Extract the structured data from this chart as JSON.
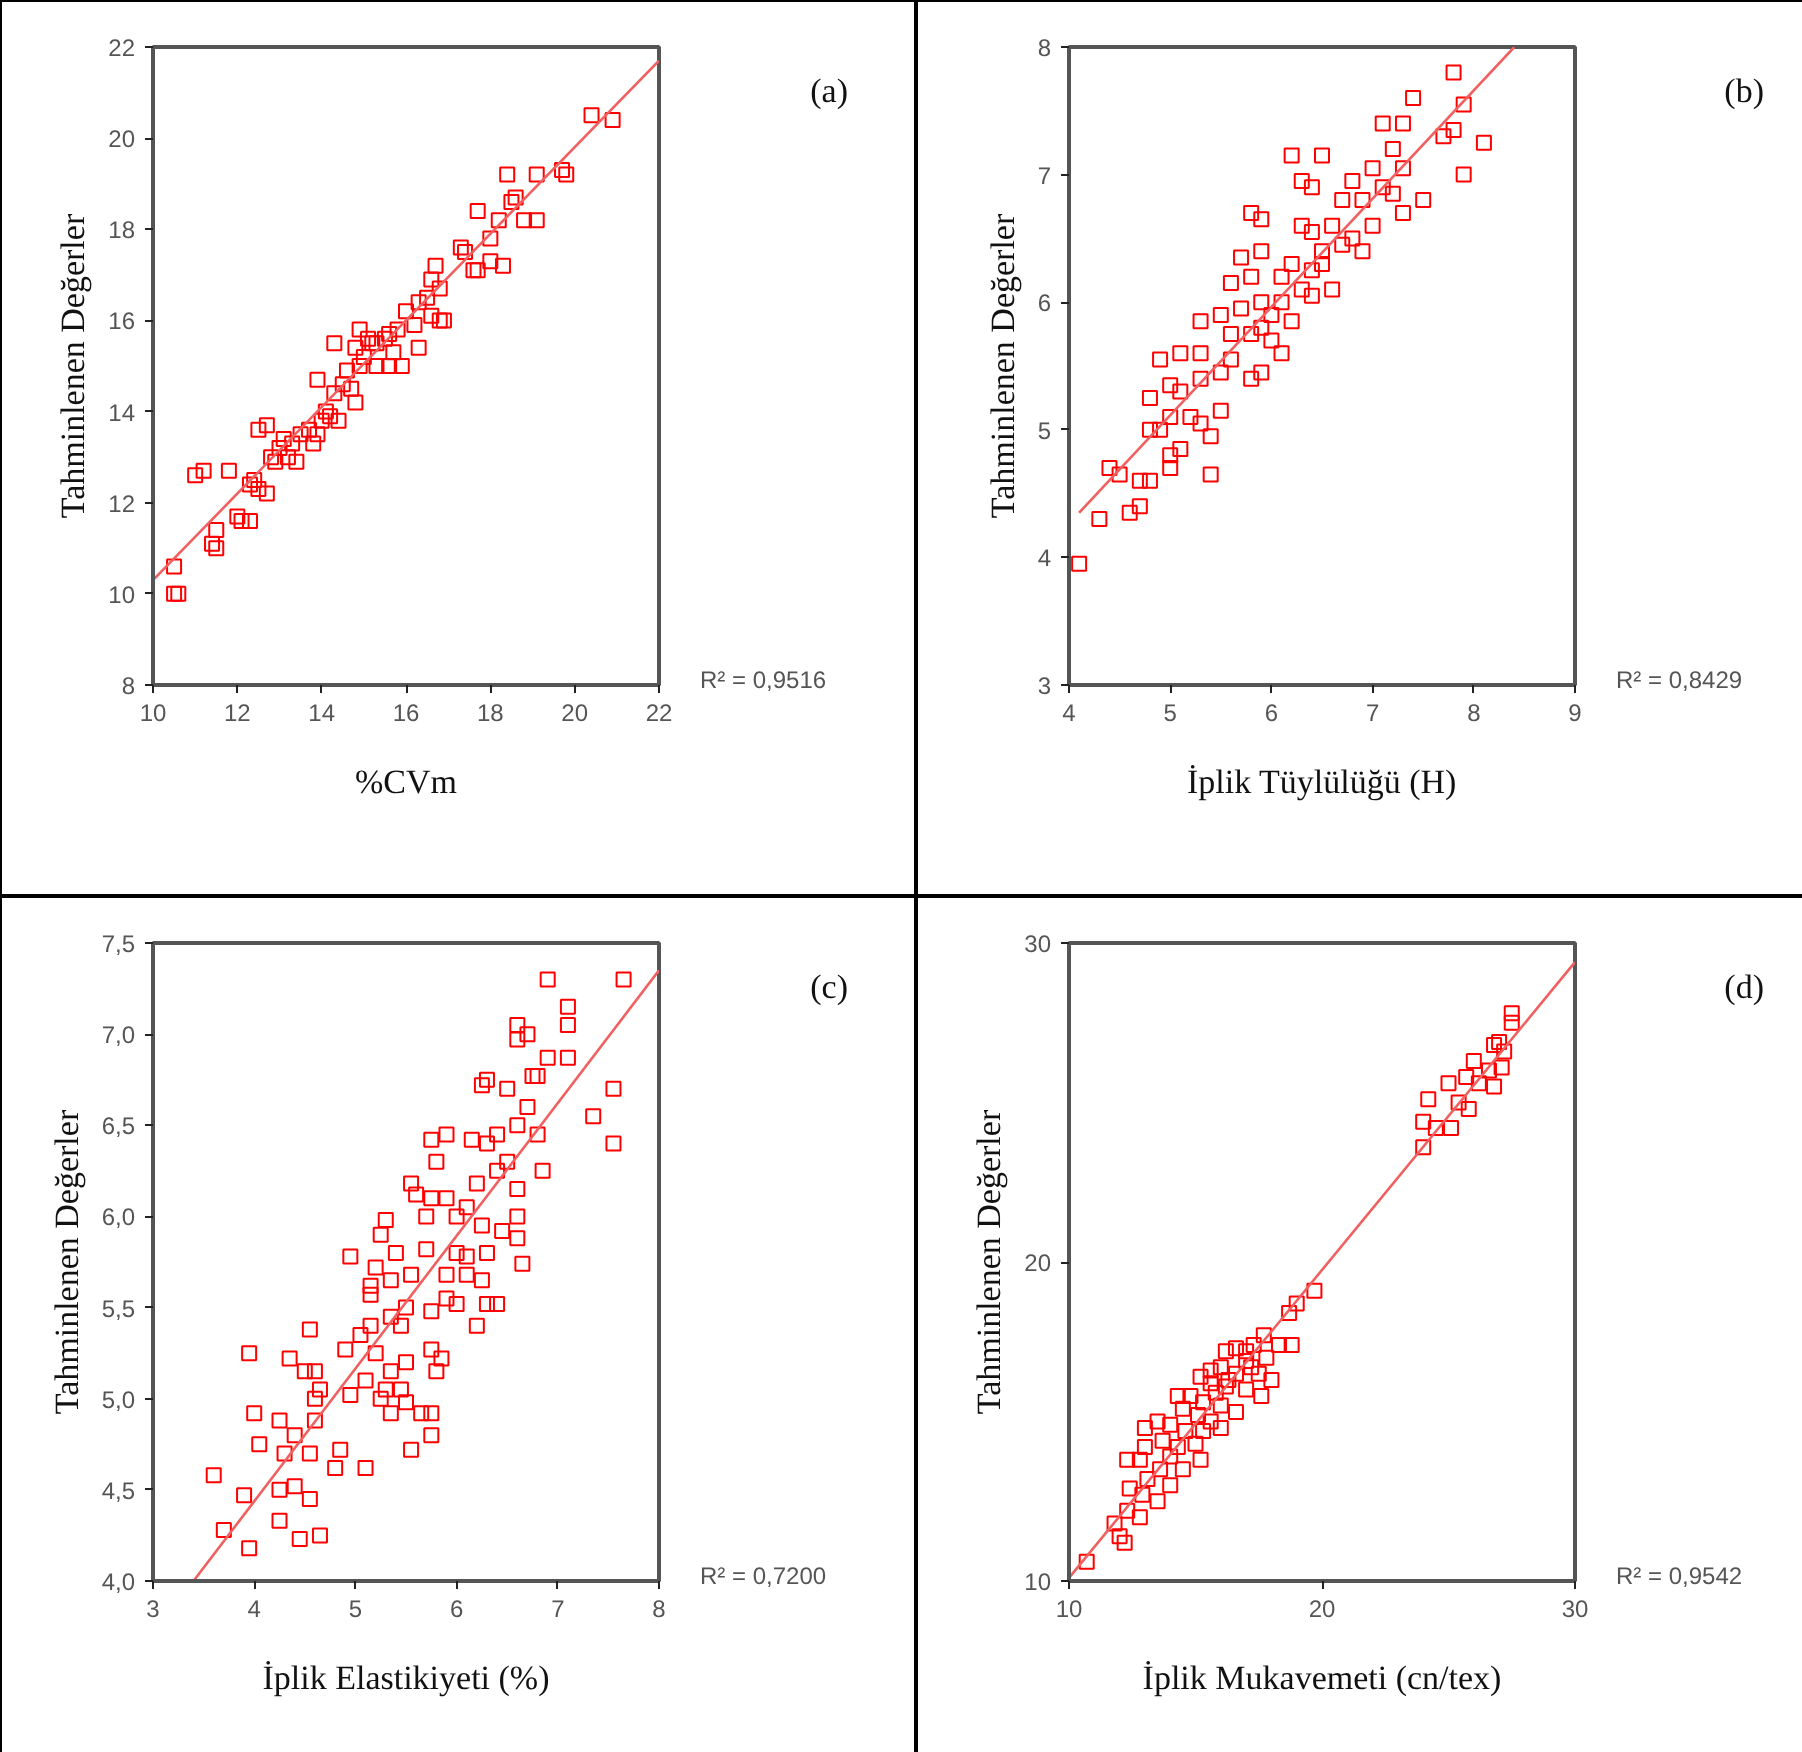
{
  "chart_data": [
    {
      "type": "scatter",
      "xlabel": "%CVm",
      "ylabel": "Tahminlenen Değerler",
      "annotations": [
        "(a)",
        "R² = 0,9516"
      ],
      "xlim": [
        10,
        22
      ],
      "ylim": [
        8,
        22
      ],
      "xticks": [
        10,
        12,
        14,
        16,
        18,
        20,
        22
      ],
      "yticks": [
        8,
        10,
        12,
        14,
        16,
        18,
        20,
        22
      ],
      "grid": false,
      "series": [
        {
          "color": "#ff0000",
          "marker": "square",
          "x": [
            20.4,
            20.9,
            19.7,
            19.8,
            19.1,
            18.4,
            18.6,
            18.5,
            18.8,
            19.1,
            18.2,
            17.7,
            18.0,
            17.3,
            17.4,
            17.6,
            17.7,
            18.0,
            18.3,
            16.7,
            16.6,
            16.8,
            16.8,
            16.9,
            16.6,
            16.3,
            16.0,
            16.2,
            16.3,
            15.8,
            15.6,
            15.7,
            15.5,
            15.3,
            15.1,
            15.0,
            15.6,
            15.9,
            15.3,
            14.9,
            14.8,
            14.9,
            14.6,
            14.3,
            14.7,
            14.5,
            14.3,
            13.9,
            14.8,
            14.2,
            14.4,
            14.0,
            13.7,
            13.9,
            13.5,
            13.3,
            13.1,
            13.0,
            13.2,
            13.4,
            12.9,
            12.7,
            12.5,
            12.8,
            12.3,
            12.5,
            12.7,
            12.4,
            12.0,
            12.1,
            12.3,
            11.8,
            11.2,
            11.0,
            11.5,
            11.4,
            11.5,
            10.5,
            10.5,
            10.6,
            15.2,
            16.5,
            13.8,
            14.1
          ],
          "values": [
            20.5,
            20.4,
            19.3,
            19.2,
            19.2,
            19.2,
            18.7,
            18.6,
            18.2,
            18.2,
            18.2,
            18.4,
            17.8,
            17.6,
            17.5,
            17.1,
            17.1,
            17.3,
            17.2,
            17.2,
            16.9,
            16.7,
            16.0,
            16.0,
            16.1,
            16.4,
            16.2,
            15.9,
            15.4,
            15.8,
            15.7,
            15.3,
            15.6,
            15.5,
            15.6,
            15.2,
            15.0,
            15.0,
            15.0,
            15.8,
            15.4,
            15.0,
            14.9,
            15.5,
            14.5,
            14.6,
            14.4,
            14.7,
            14.2,
            13.9,
            13.8,
            13.8,
            13.6,
            13.5,
            13.5,
            13.3,
            13.4,
            13.2,
            13.0,
            12.9,
            12.9,
            13.7,
            13.6,
            13.0,
            12.4,
            12.3,
            12.2,
            12.5,
            11.7,
            11.6,
            11.6,
            12.7,
            12.7,
            12.6,
            11.4,
            11.1,
            11.0,
            10.6,
            10.0,
            10.0,
            15.5,
            16.5,
            13.3,
            14.0
          ]
        },
        {
          "type": "line",
          "color": "#f06060",
          "x": [
            10,
            22
          ],
          "values": [
            10.3,
            21.7
          ]
        }
      ]
    },
    {
      "type": "scatter",
      "xlabel": "İplik Tüylülüğü (H)",
      "ylabel": "Tahminlenen Değerler",
      "annotations": [
        "(b)",
        "R² = 0,8429"
      ],
      "xlim": [
        4,
        9
      ],
      "ylim": [
        3,
        8
      ],
      "xticks": [
        4,
        5,
        6,
        7,
        8,
        9
      ],
      "yticks": [
        3,
        4,
        5,
        6,
        7,
        8
      ],
      "grid": false,
      "series": [
        {
          "color": "#ff0000",
          "marker": "square",
          "x": [
            4.1,
            4.3,
            4.6,
            4.7,
            4.4,
            4.5,
            4.7,
            4.8,
            5.0,
            5.0,
            5.1,
            5.4,
            5.4,
            4.8,
            4.9,
            5.0,
            5.2,
            5.3,
            5.5,
            4.8,
            5.0,
            5.1,
            5.3,
            5.5,
            4.9,
            5.1,
            5.3,
            5.6,
            5.8,
            5.9,
            6.1,
            5.6,
            5.8,
            5.9,
            5.3,
            5.5,
            5.7,
            6.0,
            6.2,
            5.6,
            5.8,
            5.9,
            6.1,
            6.3,
            6.4,
            6.6,
            5.7,
            5.9,
            6.2,
            6.4,
            6.5,
            6.7,
            5.8,
            5.9,
            6.3,
            6.4,
            6.6,
            6.8,
            6.9,
            7.0,
            6.7,
            6.9,
            7.1,
            6.3,
            6.4,
            6.8,
            7.0,
            7.2,
            7.3,
            7.5,
            7.3,
            6.2,
            6.5,
            7.2,
            7.3,
            7.1,
            7.7,
            7.8,
            7.9,
            8.1,
            7.4,
            7.9,
            7.8,
            6.0,
            6.1,
            6.5
          ],
          "values": [
            3.95,
            4.3,
            4.35,
            4.4,
            4.7,
            4.65,
            4.6,
            4.6,
            4.7,
            4.8,
            4.85,
            4.65,
            4.95,
            5.0,
            5.0,
            5.1,
            5.1,
            5.05,
            5.15,
            5.25,
            5.35,
            5.3,
            5.4,
            5.45,
            5.55,
            5.6,
            5.6,
            5.55,
            5.4,
            5.45,
            5.6,
            5.75,
            5.75,
            5.8,
            5.85,
            5.9,
            5.95,
            5.9,
            5.85,
            6.15,
            6.2,
            6.0,
            6.0,
            6.1,
            6.05,
            6.1,
            6.35,
            6.4,
            6.3,
            6.25,
            6.4,
            6.45,
            6.7,
            6.65,
            6.6,
            6.55,
            6.6,
            6.5,
            6.4,
            6.6,
            6.8,
            6.8,
            6.9,
            6.95,
            6.9,
            6.95,
            7.05,
            6.85,
            6.7,
            6.8,
            7.05,
            7.15,
            7.15,
            7.2,
            7.4,
            7.4,
            7.3,
            7.35,
            7.0,
            7.25,
            7.6,
            7.55,
            7.8,
            5.7,
            6.2,
            6.3
          ]
        },
        {
          "type": "line",
          "color": "#f06060",
          "x": [
            4.1,
            8.4
          ],
          "values": [
            4.35,
            8.0
          ]
        }
      ]
    },
    {
      "type": "scatter",
      "xlabel": "İplik Elastikiyeti (%)",
      "ylabel": "Tahminlenen Değerler",
      "annotations": [
        "(c)",
        "R² = 0,7200"
      ],
      "xlim": [
        3,
        8
      ],
      "ylim": [
        4.0,
        7.5
      ],
      "xticks": [
        3,
        4,
        5,
        6,
        7,
        8
      ],
      "yticks": [
        {
          "value": 4.0,
          "label": "4,0"
        },
        {
          "value": 4.5,
          "label": "4,5"
        },
        {
          "value": 5.0,
          "label": "5,0"
        },
        {
          "value": 5.5,
          "label": "5,5"
        },
        {
          "value": 6.0,
          "label": "6,0"
        },
        {
          "value": 6.5,
          "label": "6,5"
        },
        {
          "value": 7.0,
          "label": "7,0"
        },
        {
          "value": 7.5,
          "label": "7,5"
        }
      ],
      "grid": false,
      "series": [
        {
          "color": "#ff0000",
          "marker": "square",
          "x": [
            6.9,
            7.65,
            7.1,
            7.1,
            6.6,
            6.7,
            6.6,
            6.9,
            7.1,
            6.3,
            6.25,
            6.5,
            6.75,
            6.8,
            6.7,
            6.6,
            6.8,
            7.55,
            7.35,
            7.55,
            6.4,
            6.3,
            6.15,
            5.9,
            5.75,
            5.8,
            6.5,
            6.85,
            6.6,
            6.4,
            6.2,
            5.55,
            5.6,
            5.75,
            5.9,
            6.1,
            6.0,
            6.6,
            5.3,
            5.7,
            5.25,
            6.25,
            6.45,
            6.6,
            5.4,
            5.7,
            6.0,
            6.1,
            6.3,
            6.65,
            4.95,
            5.2,
            5.35,
            5.55,
            5.9,
            6.1,
            6.25,
            5.15,
            5.15,
            5.9,
            6.0,
            6.3,
            6.4,
            5.5,
            5.75,
            5.35,
            5.45,
            5.15,
            5.05,
            6.2,
            4.55,
            3.95,
            4.35,
            4.5,
            4.6,
            4.9,
            5.2,
            5.5,
            5.35,
            5.85,
            5.75,
            5.8,
            5.1,
            4.65,
            4.6,
            4.95,
            5.3,
            5.45,
            5.25,
            5.5,
            5.35,
            5.65,
            5.75,
            4.0,
            4.25,
            4.4,
            4.05,
            4.3,
            4.55,
            4.6,
            4.85,
            5.75,
            5.55,
            4.8,
            5.1,
            3.6,
            3.9,
            4.25,
            4.4,
            4.55,
            4.25,
            3.7,
            3.95,
            4.45,
            4.65
          ],
          "values": [
            7.3,
            7.3,
            7.15,
            7.05,
            7.05,
            7.0,
            6.97,
            6.87,
            6.87,
            6.75,
            6.72,
            6.7,
            6.77,
            6.77,
            6.6,
            6.5,
            6.45,
            6.7,
            6.55,
            6.4,
            6.45,
            6.4,
            6.42,
            6.45,
            6.42,
            6.3,
            6.3,
            6.25,
            6.15,
            6.25,
            6.18,
            6.18,
            6.12,
            6.1,
            6.1,
            6.05,
            6.0,
            6.0,
            5.98,
            6.0,
            5.9,
            5.95,
            5.92,
            5.88,
            5.8,
            5.82,
            5.8,
            5.78,
            5.8,
            5.74,
            5.78,
            5.72,
            5.65,
            5.68,
            5.68,
            5.68,
            5.65,
            5.62,
            5.57,
            5.55,
            5.52,
            5.52,
            5.52,
            5.5,
            5.48,
            5.45,
            5.4,
            5.4,
            5.35,
            5.4,
            5.38,
            5.25,
            5.22,
            5.15,
            5.15,
            5.27,
            5.25,
            5.2,
            5.15,
            5.22,
            5.27,
            5.15,
            5.1,
            5.05,
            5.0,
            5.02,
            5.05,
            5.05,
            5.0,
            4.98,
            4.92,
            4.92,
            4.92,
            4.92,
            4.88,
            4.8,
            4.75,
            4.7,
            4.7,
            4.88,
            4.72,
            4.8,
            4.72,
            4.62,
            4.62,
            4.58,
            4.47,
            4.5,
            4.52,
            4.45,
            4.33,
            4.28,
            4.18,
            4.23,
            4.25
          ]
        },
        {
          "type": "line",
          "color": "#f06060",
          "x": [
            3.4,
            8
          ],
          "values": [
            4.0,
            7.35
          ]
        }
      ]
    },
    {
      "type": "scatter",
      "xlabel": "İplik Mukavemeti (cn/tex)",
      "ylabel": "Tahminlenen Değerler",
      "annotations": [
        "(d)",
        "R² = 0,9542"
      ],
      "xlim": [
        10,
        30
      ],
      "ylim": [
        10,
        30
      ],
      "xticks": [
        10,
        20,
        30
      ],
      "yticks": [
        10,
        20,
        30
      ],
      "grid": false,
      "series": [
        {
          "color": "#ff0000",
          "marker": "square",
          "x": [
            27.5,
            27.5,
            27.0,
            26.8,
            27.2,
            26.0,
            27.1,
            26.6,
            25.7,
            26.2,
            26.8,
            25.0,
            24.2,
            25.4,
            25.8,
            24.0,
            24.5,
            25.1,
            24.0,
            19.7,
            19.0,
            18.7,
            17.7,
            18.3,
            18.8,
            17.3,
            17.0,
            16.6,
            16.2,
            17.8,
            17.0,
            16.0,
            15.6,
            16.6,
            17.5,
            18.0,
            15.2,
            15.6,
            16.2,
            17.0,
            14.3,
            14.8,
            15.3,
            16.0,
            17.6,
            14.5,
            15.1,
            15.6,
            16.6,
            13.5,
            14.0,
            14.6,
            15.3,
            16.0,
            13.0,
            13.7,
            14.3,
            15.0,
            13.0,
            14.0,
            15.2,
            12.3,
            12.8,
            13.6,
            14.5,
            13.1,
            14.0,
            12.4,
            12.9,
            13.5,
            12.3,
            12.8,
            11.8,
            12.0,
            12.2,
            10.7,
            16.3,
            17.2,
            15.8
          ],
          "values": [
            27.8,
            27.5,
            26.9,
            26.8,
            26.6,
            26.3,
            26.1,
            26.0,
            25.8,
            25.6,
            25.5,
            25.6,
            25.1,
            25.0,
            24.8,
            24.4,
            24.2,
            24.2,
            23.6,
            19.1,
            18.7,
            18.4,
            17.7,
            17.4,
            17.4,
            17.4,
            17.2,
            17.3,
            17.2,
            17.0,
            16.9,
            16.7,
            16.6,
            16.5,
            16.5,
            16.3,
            16.4,
            16.2,
            16.1,
            16.0,
            15.8,
            15.8,
            15.6,
            15.5,
            15.8,
            15.4,
            15.2,
            15.0,
            15.3,
            15.0,
            14.9,
            14.7,
            14.7,
            14.8,
            14.8,
            14.4,
            14.2,
            14.3,
            14.2,
            13.9,
            13.8,
            13.8,
            13.8,
            13.5,
            13.5,
            13.2,
            13.0,
            12.9,
            12.7,
            12.5,
            12.2,
            12.0,
            11.8,
            11.4,
            11.2,
            10.6,
            16.3,
            16.7,
            15.9
          ]
        },
        {
          "type": "line",
          "color": "#f06060",
          "x": [
            10,
            30
          ],
          "values": [
            10.1,
            29.4
          ]
        }
      ]
    }
  ]
}
